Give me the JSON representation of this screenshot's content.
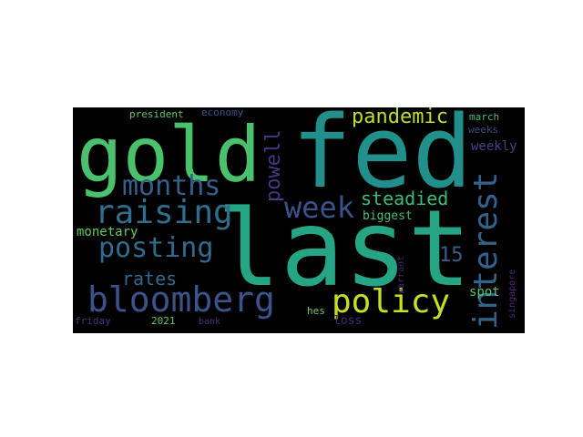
{
  "word_cloud": {
    "background": "#000000",
    "words": [
      {
        "text": "fed",
        "color": "#21908d"
      },
      {
        "text": "last",
        "color": "#25a584"
      },
      {
        "text": "gold",
        "color": "#4ac26d"
      },
      {
        "text": "bloomberg",
        "color": "#3b528b"
      },
      {
        "text": "raising",
        "color": "#2e6f8e"
      },
      {
        "text": "months",
        "color": "#35608d"
      },
      {
        "text": "posting",
        "color": "#2f6c8e"
      },
      {
        "text": "policy",
        "color": "#c8e020"
      },
      {
        "text": "interest",
        "color": "#33638d"
      },
      {
        "text": "week",
        "color": "#3b528b"
      },
      {
        "text": "pandemic",
        "color": "#bddf26"
      },
      {
        "text": "steadied",
        "color": "#3fbc73"
      },
      {
        "text": "powell",
        "color": "#443a83"
      },
      {
        "text": "rates",
        "color": "#31688e"
      },
      {
        "text": "monetary",
        "color": "#63cb5f"
      },
      {
        "text": "biggest",
        "color": "#44bf70"
      },
      {
        "text": "15",
        "color": "#365d8d"
      },
      {
        "text": "weekly",
        "color": "#414487"
      },
      {
        "text": "spot",
        "color": "#52c569"
      },
      {
        "text": "loss",
        "color": "#472a7a"
      },
      {
        "text": "hes",
        "color": "#6ccd5a"
      },
      {
        "text": "president",
        "color": "#5ec962"
      },
      {
        "text": "economy",
        "color": "#3b528b"
      },
      {
        "text": "march",
        "color": "#3dbc74"
      },
      {
        "text": "weeks",
        "color": "#3e4989"
      },
      {
        "text": "warrant",
        "color": "#482475"
      },
      {
        "text": "singapore",
        "color": "#482878"
      },
      {
        "text": "friday",
        "color": "#46327e"
      },
      {
        "text": "2021",
        "color": "#5ec962"
      },
      {
        "text": "bank",
        "color": "#472d7b"
      }
    ]
  }
}
